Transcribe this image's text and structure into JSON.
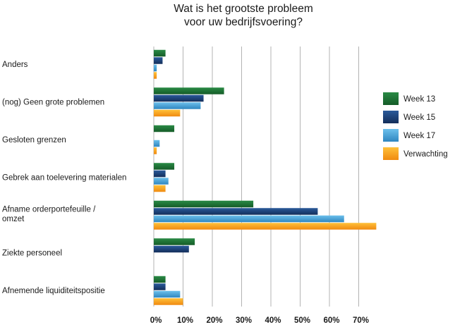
{
  "chart_data": {
    "type": "bar",
    "orientation": "horizontal",
    "title_lines": [
      "Wat is het grootste probleem",
      "voor uw bedrijfsvoering?"
    ],
    "categories": [
      [
        "Anders"
      ],
      [
        "(nog) Geen grote problemen"
      ],
      [
        "Gesloten grenzen"
      ],
      [
        "Gebrek aan toelevering materialen"
      ],
      [
        "Afname orderportefeuille /",
        "omzet"
      ],
      [
        "Ziekte personeel"
      ],
      [
        "Afnemende liquiditeitspositie"
      ]
    ],
    "series": [
      {
        "name": "Week 13",
        "color": "#1e6e34",
        "values": [
          4,
          24,
          7,
          7,
          34,
          14,
          4
        ]
      },
      {
        "name": "Week 15",
        "color": "#1c3f78",
        "values": [
          3,
          17,
          0,
          4,
          56,
          12,
          4
        ]
      },
      {
        "name": "Week 17",
        "color": "#4aa6d8",
        "values": [
          1,
          16,
          2,
          5,
          65,
          0,
          9
        ]
      },
      {
        "name": "Verwachting",
        "color": "#f6a21c",
        "values": [
          1,
          9,
          1,
          4,
          76,
          0,
          10
        ]
      }
    ],
    "xlim": [
      0,
      75
    ],
    "ticks": [
      0,
      10,
      20,
      30,
      40,
      50,
      60,
      70
    ],
    "tick_labels": [
      "0%",
      "10%",
      "20%",
      "30%",
      "40%",
      "50%",
      "60%",
      "70%"
    ],
    "grid": true,
    "legend_position": "right"
  }
}
